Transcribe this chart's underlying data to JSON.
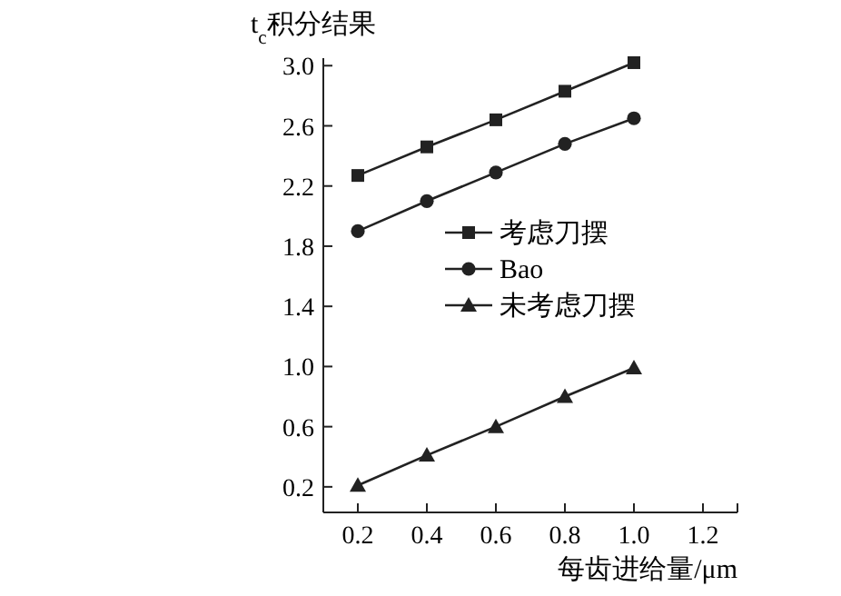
{
  "chart_data": {
    "type": "line",
    "ylabel": "t$_{c}$积分结果",
    "xlabel": "每齿进给量/μm",
    "x": [
      0.2,
      0.4,
      0.6,
      0.8,
      1.0
    ],
    "series": [
      {
        "name": "考虑刀摆",
        "color": "#222222",
        "marker": "square",
        "values": [
          2.27,
          2.46,
          2.64,
          2.83,
          3.02
        ]
      },
      {
        "name": "Bao",
        "color": "#222222",
        "marker": "circle",
        "values": [
          1.9,
          2.1,
          2.29,
          2.48,
          2.65
        ]
      },
      {
        "name": "未考虑刀摆",
        "color": "#222222",
        "marker": "triangle",
        "values": [
          0.21,
          0.41,
          0.6,
          0.8,
          0.99
        ]
      }
    ],
    "xlim": [
      0.1,
      1.3
    ],
    "xticks": [
      0.2,
      0.4,
      0.6,
      0.8,
      {
        "value": 1,
        "label": "1.0"
      },
      1.2
    ],
    "ylim": [
      0.03,
      3.05
    ],
    "yticks": [
      0.2,
      0.6,
      {
        "value": 1,
        "label": "1.0"
      },
      1.4,
      1.8,
      2.2,
      2.6,
      {
        "value": 3,
        "label": "3.0"
      }
    ],
    "grid": false,
    "legend": "right",
    "line_style": "solid"
  }
}
